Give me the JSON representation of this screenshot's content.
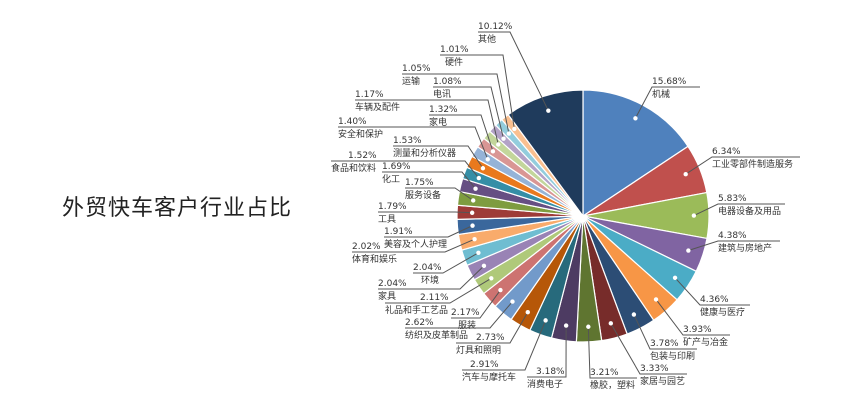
{
  "chart_data": {
    "type": "pie",
    "title": "外贸快车客户行业占比",
    "start": "12 o'clock, clockwise",
    "slices": [
      {
        "label": "机械",
        "value": 15.68,
        "text": "15.68%",
        "color": "#4f81bd"
      },
      {
        "label": "工业零部件制造服务",
        "value": 6.34,
        "text": "6.34%",
        "color": "#c0504d"
      },
      {
        "label": "电器设备及用品",
        "value": 5.83,
        "text": "5.83%",
        "color": "#9bbb59"
      },
      {
        "label": "建筑与房地产",
        "value": 4.38,
        "text": "4.38%",
        "color": "#8064a2"
      },
      {
        "label": "健康与医疗",
        "value": 4.36,
        "text": "4.36%",
        "color": "#4bacc6"
      },
      {
        "label": "矿产与冶金",
        "value": 3.93,
        "text": "3.93%",
        "color": "#f79646"
      },
      {
        "label": "包装与印刷",
        "value": 3.78,
        "text": "3.78%",
        "color": "#2c4d75"
      },
      {
        "label": "家居与园艺",
        "value": 3.33,
        "text": "3.33%",
        "color": "#772c2a"
      },
      {
        "label": "橡胶，塑料",
        "value": 3.21,
        "text": "3.21%",
        "color": "#5f7530"
      },
      {
        "label": "消费电子",
        "value": 3.18,
        "text": "3.18%",
        "color": "#4d3b62"
      },
      {
        "label": "汽车与摩托车",
        "value": 2.91,
        "text": "2.91%",
        "color": "#276a7c"
      },
      {
        "label": "灯具和照明",
        "value": 2.73,
        "text": "2.73%",
        "color": "#b65708"
      },
      {
        "label": "纺织及皮革制品",
        "value": 2.62,
        "text": "2.62%",
        "color": "#729aca"
      },
      {
        "label": "服装",
        "value": 2.17,
        "text": "2.17%",
        "color": "#cd7371"
      },
      {
        "label": "礼品和手工艺品",
        "value": 2.11,
        "text": "2.11%",
        "color": "#afc97a"
      },
      {
        "label": "家具",
        "value": 2.04,
        "text": "2.04%",
        "color": "#9983b5"
      },
      {
        "label": "环境",
        "value": 2.04,
        "text": "2.04%",
        "color": "#6fbdd1"
      },
      {
        "label": "体育和娱乐",
        "value": 2.02,
        "text": "2.02%",
        "color": "#f9ab6b"
      },
      {
        "label": "美容及个人护理",
        "value": 1.91,
        "text": "1.91%",
        "color": "#3a679c"
      },
      {
        "label": "工具",
        "value": 1.79,
        "text": "1.79%",
        "color": "#9e3b38"
      },
      {
        "label": "服务设备",
        "value": 1.75,
        "text": "1.75%",
        "color": "#7e9c40"
      },
      {
        "label": "化工",
        "value": 1.69,
        "text": "1.69%",
        "color": "#664f83"
      },
      {
        "label": "食品和饮料",
        "value": 1.52,
        "text": "1.52%",
        "color": "#358ea6"
      },
      {
        "label": "测量和分析仪器",
        "value": 1.53,
        "text": "1.53%",
        "color": "#e9791d"
      },
      {
        "label": "安全和保护",
        "value": 1.4,
        "text": "1.40%",
        "color": "#95b3d7"
      },
      {
        "label": "家电",
        "value": 1.32,
        "text": "1.32%",
        "color": "#d99694"
      },
      {
        "label": "车辆及配件",
        "value": 1.17,
        "text": "1.17%",
        "color": "#c3d69b"
      },
      {
        "label": "电讯",
        "value": 1.08,
        "text": "1.08%",
        "color": "#b3a2c7"
      },
      {
        "label": "运输",
        "value": 1.05,
        "text": "1.05%",
        "color": "#93cddd"
      },
      {
        "label": "硬件",
        "value": 1.01,
        "text": "1.01%",
        "color": "#fac090"
      },
      {
        "label": "其他",
        "value": 10.12,
        "text": "10.12%",
        "color": "#1f3b5c"
      }
    ]
  }
}
